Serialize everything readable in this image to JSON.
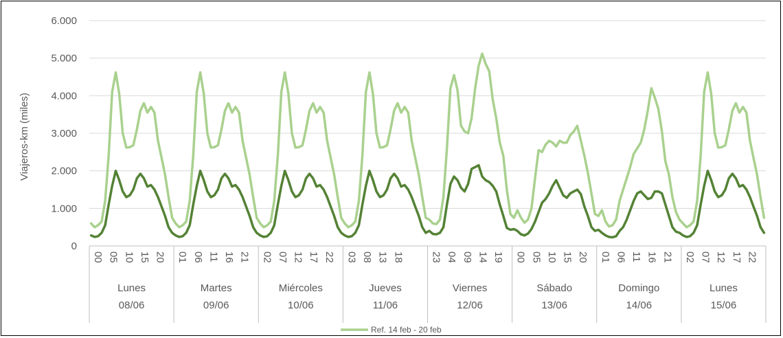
{
  "chart_data": {
    "type": "line",
    "ylabel": "Viajeros-km (miles)",
    "ylim": [
      0,
      6000
    ],
    "y_ticks": [
      "0",
      "1.000",
      "2.000",
      "3.000",
      "4.000",
      "5.000",
      "6.000"
    ],
    "grid": "horizontal",
    "legend": "bottom-center",
    "colors": {
      "ref": "#a9d18e",
      "current": "#548235",
      "grid": "#d9d9d9",
      "axis": "#bfbfbf"
    },
    "days": [
      {
        "name": "Lunes",
        "date": "08/06",
        "ticks": [
          "00",
          "05",
          "10",
          "15",
          "20"
        ]
      },
      {
        "name": "Martes",
        "date": "09/06",
        "ticks": [
          "01",
          "06",
          "11",
          "16",
          "21"
        ]
      },
      {
        "name": "Miércoles",
        "date": "10/06",
        "ticks": [
          "02",
          "07",
          "12",
          "17",
          "22"
        ]
      },
      {
        "name": "Jueves",
        "date": "11/06",
        "ticks": [
          "03",
          "08",
          "13",
          "18"
        ]
      },
      {
        "name": "Viernes",
        "date": "12/06",
        "ticks": [
          "23",
          "04",
          "09",
          "14",
          "19"
        ]
      },
      {
        "name": "Sábado",
        "date": "13/06",
        "ticks": [
          "00",
          "05",
          "10",
          "15",
          "20"
        ]
      },
      {
        "name": "Domingo",
        "date": "14/06",
        "ticks": [
          "01",
          "06",
          "11",
          "16",
          "21"
        ]
      },
      {
        "name": "Lunes",
        "date": "15/06",
        "ticks": [
          "02",
          "07",
          "12",
          "17",
          "22"
        ]
      }
    ],
    "series": [
      {
        "name": "Ref. 14 feb - 20 feb",
        "color": "#a9d18e",
        "weekday_profile": [
          600,
          500,
          550,
          650,
          1200,
          2400,
          4100,
          4620,
          4050,
          3000,
          2620,
          2630,
          2680,
          3100,
          3600,
          3800,
          3550,
          3700,
          3550,
          2800,
          2350,
          1900,
          1300,
          750
        ],
        "friday_profile": [
          700,
          600,
          580,
          700,
          1300,
          2600,
          4200,
          4550,
          4150,
          3200,
          3050,
          3000,
          3400,
          4200,
          4800,
          5120,
          4850,
          4650,
          3900,
          3400,
          2750,
          2400,
          1500,
          850
        ],
        "saturday_profile": [
          750,
          950,
          750,
          620,
          700,
          1000,
          1800,
          2550,
          2500,
          2700,
          2800,
          2750,
          2650,
          2800,
          2750,
          2750,
          2950,
          3050,
          3200,
          2800,
          2400,
          1950,
          1400,
          850
        ],
        "sunday_profile": [
          800,
          950,
          650,
          520,
          550,
          700,
          1200,
          1500,
          1800,
          2100,
          2450,
          2600,
          2750,
          3100,
          3600,
          4200,
          3950,
          3650,
          3050,
          2250,
          1900,
          1300,
          900,
          700
        ]
      },
      {
        "name": "",
        "color": "#548235",
        "weekday_profile": [
          280,
          240,
          260,
          350,
          550,
          1100,
          1600,
          2000,
          1750,
          1450,
          1300,
          1350,
          1500,
          1800,
          1920,
          1800,
          1580,
          1620,
          1500,
          1300,
          1050,
          800,
          500,
          350
        ],
        "friday_profile": [
          400,
          320,
          310,
          350,
          500,
          1100,
          1650,
          1850,
          1750,
          1550,
          1450,
          1650,
          2050,
          2100,
          2150,
          1850,
          1750,
          1700,
          1600,
          1450,
          1100,
          800,
          480,
          430
        ],
        "saturday_profile": [
          450,
          400,
          310,
          280,
          330,
          450,
          650,
          900,
          1150,
          1250,
          1400,
          1600,
          1750,
          1550,
          1350,
          1280,
          1400,
          1450,
          1500,
          1380,
          1050,
          800,
          500,
          400
        ],
        "sunday_profile": [
          430,
          350,
          280,
          240,
          230,
          260,
          400,
          500,
          700,
          950,
          1200,
          1400,
          1450,
          1350,
          1250,
          1280,
          1450,
          1450,
          1400,
          1100,
          800,
          500,
          380,
          350
        ]
      }
    ]
  }
}
